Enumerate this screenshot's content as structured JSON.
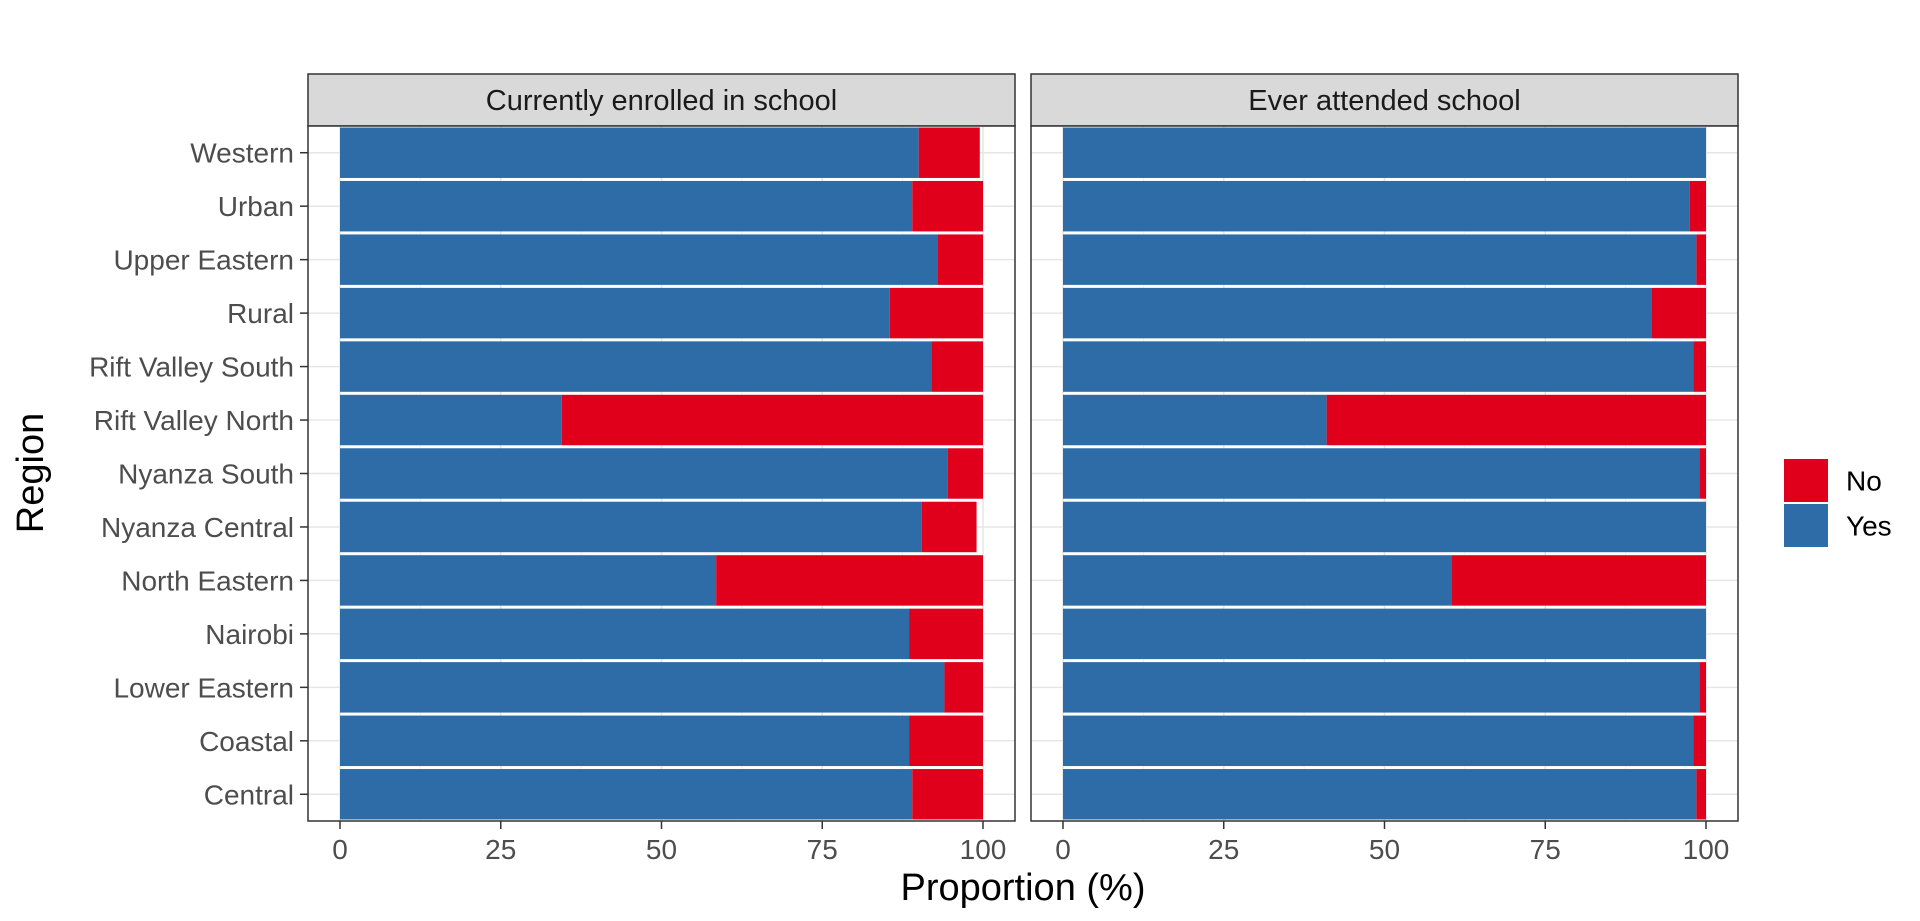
{
  "chart_data": {
    "type": "bar",
    "orientation": "horizontal",
    "stacked": true,
    "xlabel": "Proportion (%)",
    "ylabel": "Region",
    "xlim": [
      0,
      100
    ],
    "x_ticks": [
      0,
      25,
      50,
      75,
      100
    ],
    "grid": true,
    "legend_position": "right",
    "categories": [
      "Western",
      "Urban",
      "Upper Eastern",
      "Rural",
      "Rift Valley South",
      "Rift Valley North",
      "Nyanza South",
      "Nyanza Central",
      "North Eastern",
      "Nairobi",
      "Lower Eastern",
      "Coastal",
      "Central"
    ],
    "legend": [
      {
        "name": "No",
        "color": "#e0001b"
      },
      {
        "name": "Yes",
        "color": "#2e6ca8"
      }
    ],
    "panels": [
      {
        "title": "Currently enrolled in school",
        "series": [
          {
            "name": "Yes",
            "color": "#2e6ca8",
            "values": [
              90,
              89,
              93,
              85.5,
              92,
              34.5,
              94.5,
              90.5,
              58.5,
              88.5,
              94,
              88.5,
              89
            ]
          },
          {
            "name": "No",
            "color": "#e0001b",
            "values": [
              9.5,
              11,
              7,
              14.5,
              8,
              65.5,
              5.5,
              8.5,
              41.5,
              11.5,
              6,
              11.5,
              11
            ]
          }
        ]
      },
      {
        "title": "Ever attended school",
        "series": [
          {
            "name": "Yes",
            "color": "#2e6ca8",
            "values": [
              100,
              97.5,
              98.5,
              91.5,
              98,
              41,
              99,
              100,
              60.5,
              100,
              99,
              98,
              98.5
            ]
          },
          {
            "name": "No",
            "color": "#e0001b",
            "values": [
              0,
              2.5,
              1.5,
              8.5,
              2,
              59,
              1,
              0,
              39.5,
              0,
              1,
              2,
              1.5
            ]
          }
        ]
      }
    ]
  }
}
